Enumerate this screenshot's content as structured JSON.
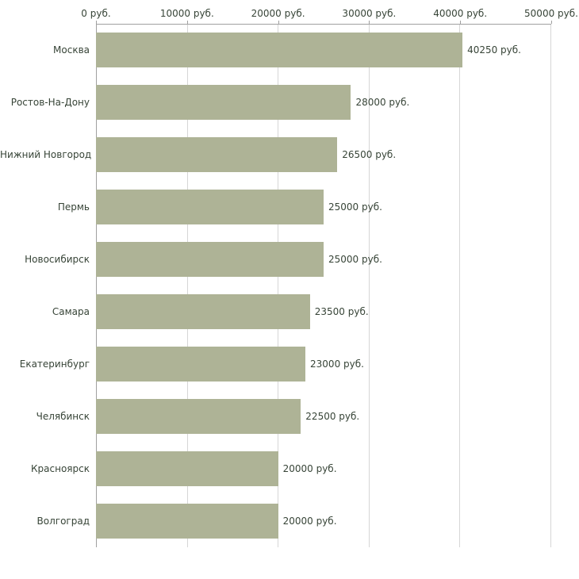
{
  "chart_data": {
    "type": "bar",
    "orientation": "horizontal",
    "title": "",
    "xlabel": "",
    "ylabel": "",
    "categories": [
      "Москва",
      "Ростов-На-Дону",
      "Нижний Новгород",
      "Пермь",
      "Новосибирск",
      "Самара",
      "Екатеринбург",
      "Челябинск",
      "Красноярск",
      "Волгоград"
    ],
    "values": [
      40250,
      28000,
      26500,
      25000,
      25000,
      23500,
      23000,
      22500,
      20000,
      20000
    ],
    "value_labels": [
      "40250 руб.",
      "28000 руб.",
      "26500 руб.",
      "25000 руб.",
      "25000 руб.",
      "23500 руб.",
      "23000 руб.",
      "22500 руб.",
      "20000 руб.",
      "20000 руб."
    ],
    "x_ticks": [
      0,
      10000,
      20000,
      30000,
      40000,
      50000
    ],
    "x_tick_labels": [
      "0 руб.",
      "10000 руб.",
      "20000 руб.",
      "30000 руб.",
      "40000 руб.",
      "50000 руб."
    ],
    "xlim": [
      0,
      50000
    ],
    "grid": true,
    "legend": "none",
    "colors": {
      "bar": "#aeb396",
      "text": "#374437",
      "axis": "#a0a0a0",
      "gridline": "#d6d6d6",
      "background": "#ffffff"
    }
  }
}
